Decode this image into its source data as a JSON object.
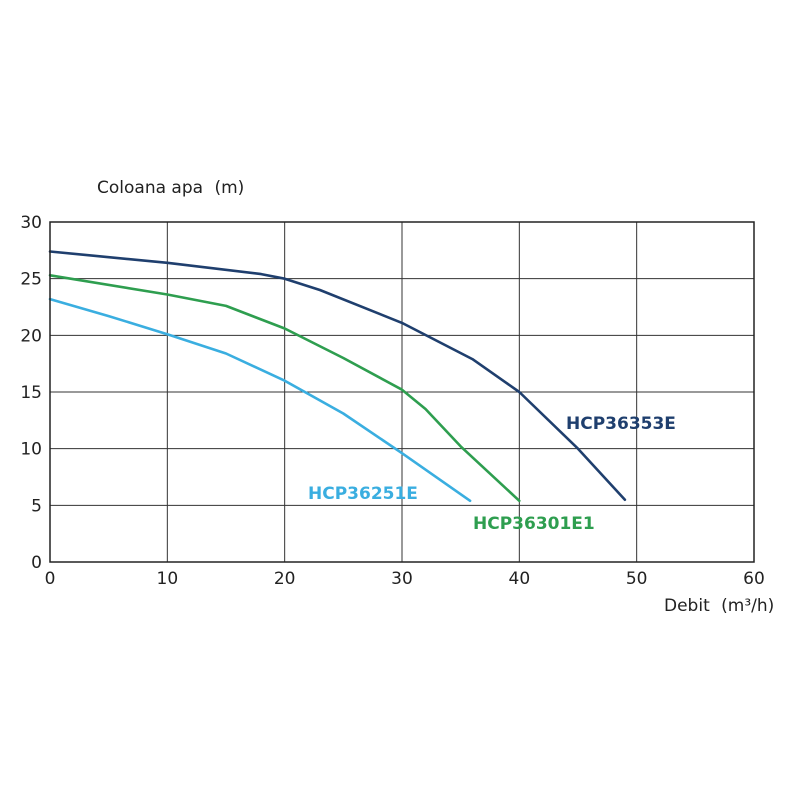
{
  "chart_data": {
    "type": "line",
    "ylabel": "Coloana apa",
    "ylabel_unit": "(m)",
    "xlabel": "Debit",
    "xlabel_unit": "(m³/h)",
    "xlim": [
      0,
      60
    ],
    "ylim": [
      0,
      30
    ],
    "xticks": [
      "0",
      "10",
      "20",
      "30",
      "40",
      "50",
      "60"
    ],
    "yticks": [
      "0",
      "5",
      "10",
      "15",
      "20",
      "25",
      "30"
    ],
    "grid": true,
    "series": [
      {
        "name": "HCP36353E",
        "color": "#1f3f6e",
        "x": [
          0,
          10,
          18,
          20,
          23,
          30,
          36,
          40,
          45,
          49
        ],
        "y": [
          27.4,
          26.4,
          25.4,
          25.0,
          24.0,
          21.1,
          17.9,
          15.0,
          10.0,
          5.5
        ]
      },
      {
        "name": "HCP36301E1",
        "color": "#2e9e4f",
        "x": [
          0,
          10,
          15,
          20,
          25,
          30,
          32,
          35,
          40
        ],
        "y": [
          25.3,
          23.6,
          22.6,
          20.6,
          18.0,
          15.2,
          13.5,
          10.2,
          5.4
        ]
      },
      {
        "name": "HCP36251E",
        "color": "#3aaee0",
        "x": [
          0,
          5,
          10,
          15,
          20,
          25,
          30,
          35.8
        ],
        "y": [
          23.2,
          21.7,
          20.1,
          18.4,
          16.0,
          13.1,
          9.6,
          5.4
        ]
      }
    ]
  }
}
